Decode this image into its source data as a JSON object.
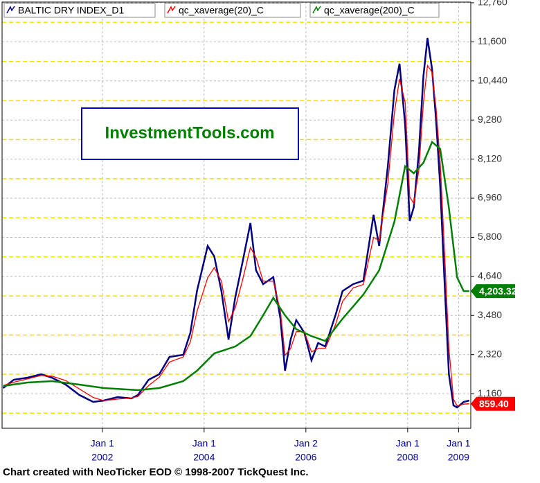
{
  "chart_data": {
    "type": "line",
    "watermark": "InvestmentTools.com",
    "footer": "Chart created with NeoTicker EOD © 1998-2007 TickQuest Inc.",
    "xlim": [
      2000.03,
      2009.24
    ],
    "xticks": [
      {
        "value": 2002,
        "label": "Jan 1",
        "year": "2002"
      },
      {
        "value": 2004,
        "label": "Jan 1",
        "year": "2004"
      },
      {
        "value": 2006,
        "label": "Jan 2",
        "year": "2006"
      },
      {
        "value": 2008,
        "label": "Jan 1",
        "year": "2008"
      },
      {
        "value": 2009,
        "label": "Jan 1",
        "year": "2009"
      }
    ],
    "ylim": [
      134,
      12780
    ],
    "yticks": [
      {
        "value": 1160,
        "label": "1,160"
      },
      {
        "value": 2320,
        "label": "2,320"
      },
      {
        "value": 3480,
        "label": "3,480"
      },
      {
        "value": 4640,
        "label": "4,640"
      },
      {
        "value": 5800,
        "label": "5,800"
      },
      {
        "value": 6960,
        "label": "6,960"
      },
      {
        "value": 8120,
        "label": "8,120"
      },
      {
        "value": 9280,
        "label": "9,280"
      },
      {
        "value": 10440,
        "label": "10,440"
      },
      {
        "value": 11600,
        "label": "11,600"
      },
      {
        "value": 12760,
        "label": "12,760"
      }
    ],
    "minor_yticks": [
      580,
      1740,
      2900,
      4060,
      5220,
      6380,
      7540,
      8700,
      9860,
      11020,
      12180
    ],
    "grid": true,
    "series": [
      {
        "name": "BALTIC DRY INDEX_D1",
        "color": "#000080",
        "x": [
          2000.05,
          2000.26,
          2000.53,
          2000.8,
          2001.01,
          2001.28,
          2001.55,
          2001.82,
          2002.03,
          2002.3,
          2002.57,
          2002.7,
          2002.91,
          2003.12,
          2003.32,
          2003.59,
          2003.73,
          2003.86,
          2004.07,
          2004.2,
          2004.34,
          2004.48,
          2004.61,
          2004.75,
          2004.91,
          2005.02,
          2005.16,
          2005.36,
          2005.5,
          2005.59,
          2005.7,
          2005.81,
          2005.97,
          2006.11,
          2006.24,
          2006.38,
          2006.58,
          2006.72,
          2006.93,
          2007.13,
          2007.33,
          2007.44,
          2007.61,
          2007.74,
          2007.84,
          2007.95,
          2008.04,
          2008.12,
          2008.22,
          2008.31,
          2008.39,
          2008.48,
          2008.56,
          2008.64,
          2008.72,
          2008.81,
          2008.9,
          2008.97,
          2009.1,
          2009.21
        ],
        "values": [
          1327,
          1573,
          1635,
          1738,
          1635,
          1430,
          1122,
          916,
          956,
          1059,
          1018,
          1122,
          1573,
          1738,
          2252,
          2314,
          2972,
          4206,
          5543,
          5234,
          4206,
          2766,
          4001,
          5029,
          6222,
          4823,
          4412,
          4617,
          3383,
          1841,
          2766,
          3342,
          2972,
          2149,
          2663,
          2561,
          3486,
          4206,
          4412,
          4514,
          6468,
          5543,
          7908,
          10170,
          10952,
          9142,
          6283,
          6694,
          8319,
          10582,
          11713,
          10788,
          9245,
          7291,
          4617,
          1738,
          812,
          751,
          916,
          956
        ]
      },
      {
        "name": "qc_xaverage(20)_C",
        "color": "#ff0000",
        "x": [
          2000.05,
          2000.26,
          2000.53,
          2000.8,
          2001.01,
          2001.28,
          2001.55,
          2001.82,
          2002.03,
          2002.3,
          2002.57,
          2002.7,
          2002.91,
          2003.12,
          2003.32,
          2003.59,
          2003.73,
          2003.86,
          2004.07,
          2004.2,
          2004.34,
          2004.48,
          2004.61,
          2004.75,
          2004.91,
          2005.02,
          2005.16,
          2005.36,
          2005.5,
          2005.59,
          2005.7,
          2005.81,
          2005.97,
          2006.11,
          2006.24,
          2006.38,
          2006.58,
          2006.72,
          2006.93,
          2007.13,
          2007.33,
          2007.44,
          2007.61,
          2007.74,
          2007.84,
          2007.95,
          2008.04,
          2008.12,
          2008.22,
          2008.31,
          2008.39,
          2008.48,
          2008.56,
          2008.64,
          2008.72,
          2008.81,
          2008.9,
          2008.97,
          2009.1,
          2009.21
        ],
        "values": [
          1400,
          1500,
          1600,
          1700,
          1680,
          1550,
          1300,
          1050,
          950,
          1000,
          1030,
          1080,
          1400,
          1650,
          2100,
          2250,
          2700,
          3600,
          4600,
          4900,
          4500,
          3300,
          3700,
          4500,
          5500,
          5200,
          4500,
          4500,
          3600,
          2300,
          2500,
          3000,
          3000,
          2400,
          2500,
          2500,
          3200,
          3900,
          4300,
          4400,
          5800,
          5700,
          7400,
          9500,
          10500,
          9800,
          7000,
          6800,
          7800,
          9800,
          10900,
          10700,
          9600,
          8000,
          5500,
          2500,
          1000,
          800,
          850,
          859.4
        ],
        "last_label": {
          "value": 859.4,
          "label": "859.40"
        }
      },
      {
        "name": "qc_xaverage(200)_C",
        "color": "#008000",
        "x": [
          2000.05,
          2000.53,
          2001.01,
          2001.55,
          2002.03,
          2002.7,
          2003.12,
          2003.59,
          2003.86,
          2004.2,
          2004.61,
          2004.91,
          2005.16,
          2005.36,
          2005.59,
          2005.81,
          2006.11,
          2006.38,
          2006.72,
          2007.13,
          2007.44,
          2007.74,
          2007.95,
          2008.12,
          2008.31,
          2008.48,
          2008.64,
          2008.81,
          2008.97,
          2009.1,
          2009.21
        ],
        "values": [
          1388,
          1491,
          1532,
          1430,
          1327,
          1265,
          1327,
          1532,
          1841,
          2355,
          2561,
          2869,
          3486,
          4001,
          3486,
          3075,
          2869,
          2725,
          3383,
          4103,
          4823,
          6263,
          7908,
          7702,
          8011,
          8628,
          8422,
          6674,
          4617,
          4206,
          4203.32
        ],
        "last_label": {
          "value": 4203.32,
          "label": "4,203.32"
        }
      }
    ]
  }
}
